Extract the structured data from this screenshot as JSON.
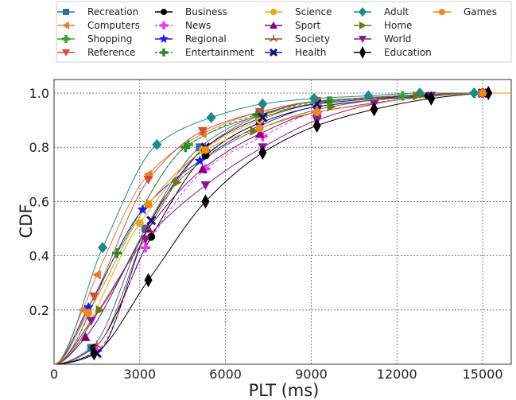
{
  "chart_data": {
    "type": "line",
    "xlabel": "PLT (ms)",
    "ylabel": "CDF",
    "xlim": [
      0,
      16000
    ],
    "ylim": [
      0,
      1.05
    ],
    "xticks": [
      0,
      3000,
      6000,
      9000,
      12000,
      15000
    ],
    "yticks": [
      0.2,
      0.4,
      0.6,
      0.8,
      1.0
    ],
    "grid": true,
    "legend_position": "top",
    "series": [
      {
        "name": "Recreation",
        "color": "#2e6fa8",
        "marker": "square",
        "dash": "solid",
        "points": [
          [
            1300,
            0.06
          ],
          [
            3200,
            0.5
          ],
          [
            5100,
            0.8
          ],
          [
            7200,
            0.92
          ],
          [
            9200,
            0.97
          ],
          [
            15000,
            1.0
          ]
        ]
      },
      {
        "name": "Computers",
        "color": "#f07a32",
        "marker": "triangle-left",
        "dash": "solid",
        "points": [
          [
            1000,
            0.2
          ],
          [
            1500,
            0.33
          ],
          [
            3300,
            0.7
          ],
          [
            5200,
            0.85
          ],
          [
            7200,
            0.93
          ],
          [
            9200,
            0.97
          ],
          [
            15000,
            1.0
          ]
        ]
      },
      {
        "name": "Shopping",
        "color": "#3aa13a",
        "marker": "plus",
        "dash": "solid",
        "points": [
          [
            2200,
            0.41
          ],
          [
            4700,
            0.81
          ],
          [
            7300,
            0.92
          ],
          [
            9700,
            0.97
          ],
          [
            12200,
            0.99
          ],
          [
            14700,
            1.0
          ]
        ]
      },
      {
        "name": "Reference",
        "color": "#d94a3a",
        "marker": "triangle-down",
        "dash": "solid",
        "points": [
          [
            1400,
            0.25
          ],
          [
            3300,
            0.68
          ],
          [
            5200,
            0.86
          ],
          [
            7200,
            0.93
          ],
          [
            9200,
            0.97
          ],
          [
            15000,
            1.0
          ]
        ]
      },
      {
        "name": "Business",
        "color": "#000000",
        "marker": "circle",
        "dash": "solid",
        "points": [
          [
            1400,
            0.06
          ],
          [
            3400,
            0.47
          ],
          [
            5300,
            0.77
          ],
          [
            7200,
            0.89
          ],
          [
            9200,
            0.95
          ],
          [
            13100,
            0.99
          ],
          [
            15000,
            1.0
          ]
        ]
      },
      {
        "name": "News",
        "color": "#ee33ee",
        "marker": "plus",
        "dash": "dashed",
        "points": [
          [
            1500,
            0.05
          ],
          [
            3200,
            0.43
          ],
          [
            5300,
            0.72
          ],
          [
            7300,
            0.84
          ],
          [
            9200,
            0.93
          ],
          [
            15000,
            1.0
          ]
        ]
      },
      {
        "name": "Regional",
        "color": "#1a1aff",
        "marker": "star",
        "dash": "solid",
        "points": [
          [
            1200,
            0.21
          ],
          [
            3100,
            0.57
          ],
          [
            5100,
            0.75
          ],
          [
            7200,
            0.88
          ],
          [
            9200,
            0.95
          ],
          [
            15000,
            1.0
          ]
        ]
      },
      {
        "name": "Entertainment",
        "color": "#2a8a2a",
        "marker": "plus",
        "dash": "dashed",
        "points": [
          [
            2200,
            0.41
          ],
          [
            4600,
            0.8
          ],
          [
            7100,
            0.92
          ],
          [
            9600,
            0.97
          ],
          [
            15000,
            1.0
          ]
        ]
      },
      {
        "name": "Science",
        "color": "#f0a320",
        "marker": "circle",
        "dash": "solid",
        "points": [
          [
            3000,
            0.52
          ],
          [
            5200,
            0.79
          ],
          [
            7200,
            0.9
          ],
          [
            9200,
            0.96
          ],
          [
            15000,
            1.0
          ]
        ]
      },
      {
        "name": "Sport",
        "color": "#800080",
        "marker": "triangle-up",
        "dash": "solid",
        "points": [
          [
            1100,
            0.1
          ],
          [
            3300,
            0.5
          ],
          [
            5200,
            0.72
          ],
          [
            7200,
            0.85
          ],
          [
            9200,
            0.93
          ],
          [
            15000,
            1.0
          ]
        ]
      },
      {
        "name": "Society",
        "color": "#9c4a2a",
        "marker": "tri",
        "dash": "solid",
        "points": [
          [
            1500,
            0.07
          ],
          [
            3300,
            0.5
          ],
          [
            5300,
            0.8
          ],
          [
            7300,
            0.92
          ],
          [
            9200,
            0.97
          ],
          [
            15000,
            1.0
          ]
        ]
      },
      {
        "name": "Health",
        "color": "#101080",
        "marker": "x",
        "dash": "solid",
        "points": [
          [
            1500,
            0.04
          ],
          [
            3400,
            0.53
          ],
          [
            5300,
            0.8
          ],
          [
            7300,
            0.91
          ],
          [
            9200,
            0.96
          ],
          [
            15000,
            1.0
          ]
        ]
      },
      {
        "name": "Adult",
        "color": "#1a8a8a",
        "marker": "diamond",
        "dash": "solid",
        "points": [
          [
            1700,
            0.43
          ],
          [
            3600,
            0.81
          ],
          [
            5500,
            0.91
          ],
          [
            7300,
            0.96
          ],
          [
            9100,
            0.98
          ],
          [
            11000,
            0.99
          ],
          [
            12800,
            1.0
          ],
          [
            14700,
            1.0
          ]
        ]
      },
      {
        "name": "Home",
        "color": "#6a7a10",
        "marker": "triangle-right",
        "dash": "solid",
        "points": [
          [
            1600,
            0.2
          ],
          [
            4300,
            0.67
          ],
          [
            7000,
            0.86
          ],
          [
            9700,
            0.95
          ],
          [
            12700,
            0.99
          ],
          [
            15000,
            1.0
          ]
        ]
      },
      {
        "name": "World",
        "color": "#8a1a8a",
        "marker": "triangle-down",
        "dash": "solid",
        "points": [
          [
            1300,
            0.16
          ],
          [
            3200,
            0.46
          ],
          [
            5300,
            0.66
          ],
          [
            7300,
            0.8
          ],
          [
            9200,
            0.9
          ],
          [
            11200,
            0.96
          ],
          [
            13200,
            0.99
          ],
          [
            15000,
            1.0
          ]
        ]
      },
      {
        "name": "Education",
        "color": "#000000",
        "marker": "thin-diamond",
        "dash": "solid",
        "points": [
          [
            1400,
            0.04
          ],
          [
            3300,
            0.31
          ],
          [
            5300,
            0.6
          ],
          [
            7300,
            0.78
          ],
          [
            9200,
            0.88
          ],
          [
            11200,
            0.94
          ],
          [
            13200,
            0.98
          ],
          [
            15200,
            1.0
          ]
        ]
      },
      {
        "name": "Games",
        "color": "#f08a10",
        "marker": "circle",
        "dash": "solid",
        "points": [
          [
            1200,
            0.19
          ],
          [
            3300,
            0.59
          ],
          [
            5300,
            0.79
          ],
          [
            7200,
            0.87
          ],
          [
            9200,
            0.93
          ],
          [
            15000,
            1.0
          ]
        ]
      }
    ]
  }
}
